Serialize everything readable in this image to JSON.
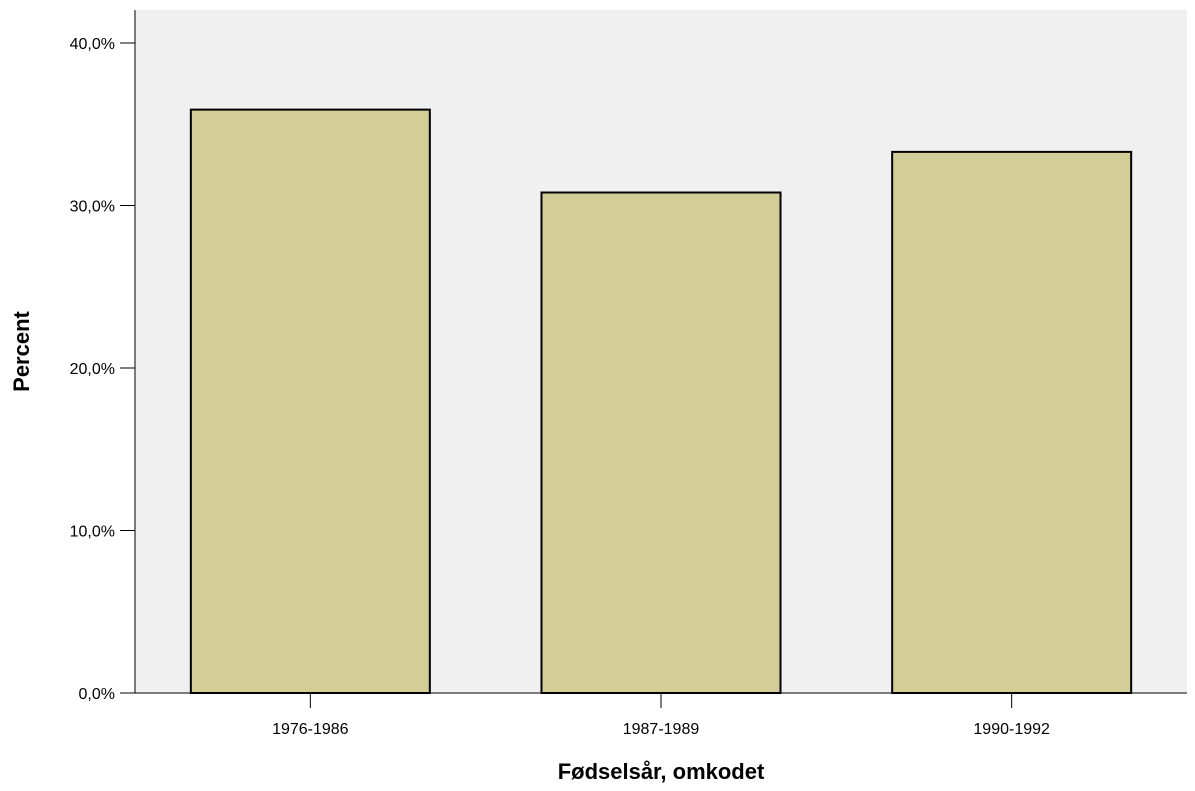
{
  "chart_data": {
    "type": "bar",
    "categories": [
      "1976-1986",
      "1987-1989",
      "1990-1992"
    ],
    "values": [
      35.9,
      30.8,
      33.3
    ],
    "title": "",
    "xlabel": "Fødselsår, omkodet",
    "ylabel": "Percent",
    "ylim": [
      0,
      42
    ],
    "yticks": [
      0,
      10,
      20,
      30,
      40
    ],
    "ytick_labels": [
      "0,0%",
      "10,0%",
      "20,0%",
      "30,0%",
      "40,0%"
    ],
    "grid": false,
    "legend": "none",
    "colors": {
      "plot_background": "#f0f0f0",
      "bar_fill": "#d3ce97",
      "bar_stroke": "#000000"
    }
  }
}
